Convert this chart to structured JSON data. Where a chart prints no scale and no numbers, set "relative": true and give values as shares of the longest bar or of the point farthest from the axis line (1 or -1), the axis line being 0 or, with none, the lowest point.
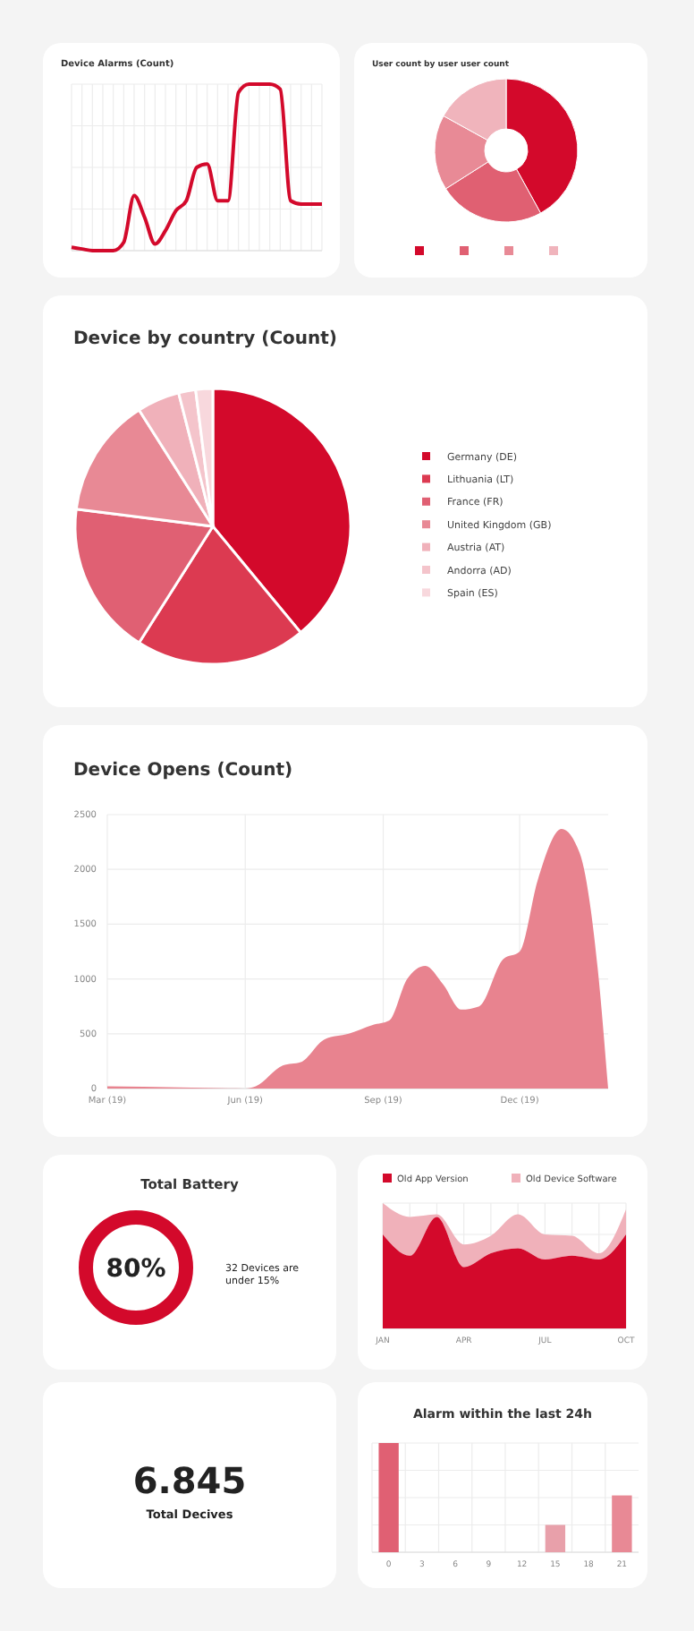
{
  "chart_data": [
    {
      "type": "line",
      "title": "Device Alarms (Count)",
      "relative": true,
      "grid": true,
      "categories": [
        null,
        null,
        null,
        null,
        null,
        null,
        null,
        null,
        null,
        null,
        null,
        null,
        null,
        null,
        null,
        null,
        null,
        null,
        null,
        null,
        null,
        null,
        null,
        null,
        null
      ],
      "series": [
        {
          "color": "#d3092b",
          "values": [
            0.02,
            0.01,
            0,
            0,
            0,
            0.05,
            0.33,
            0.2,
            0.04,
            0.12,
            0.24,
            0.3,
            0.5,
            0.52,
            0.3,
            0.3,
            0.95,
            1,
            1,
            1,
            0.97,
            0.3,
            0.28,
            0.28,
            0.28
          ]
        }
      ]
    },
    {
      "type": "donut",
      "title": "User count by user user count",
      "categories": [
        null,
        null,
        null,
        null
      ],
      "values": [
        42,
        24,
        17,
        17
      ],
      "colors": [
        "#d3092b",
        "#e06072",
        "#e88a96",
        "#f0b4bc"
      ]
    },
    {
      "type": "pie",
      "title": "Device by country (Count)",
      "categories": [
        "Germany (DE)",
        "Lithuania (LT)",
        "France (FR)",
        "United Kingdom (GB)",
        "Austria (AT)",
        "Andorra (AD)",
        "Spain (ES)"
      ],
      "values": [
        39,
        20,
        18,
        14,
        5,
        2,
        2
      ],
      "colors": [
        "#d3092b",
        "#dc3a51",
        "#e06073",
        "#e88995",
        "#f0b1ba",
        "#f4c4cb",
        "#f8d8dd"
      ],
      "legend": "right"
    },
    {
      "type": "area",
      "title": "Device Opens (Count)",
      "grid": true,
      "xlim": [
        "2019-03-01",
        "2020-01-29"
      ],
      "xticks": [
        {
          "value": "2019-03-01",
          "label": "Mar (19)"
        },
        {
          "value": "2019-06-01",
          "label": "Jun (19)"
        },
        {
          "value": "2019-09-01",
          "label": "Sep (19)"
        },
        {
          "value": "2019-12-01",
          "label": "Dec (19)"
        }
      ],
      "ylim": [
        0,
        2500
      ],
      "yticks": [
        0,
        500,
        1000,
        1500,
        2000,
        2500
      ],
      "x": [
        "2019-03-01",
        "2019-04-18",
        "2019-06-01",
        "2019-06-08",
        "2019-06-26",
        "2019-07-08",
        "2019-07-24",
        "2019-08-09",
        "2019-08-25",
        "2019-09-05",
        "2019-09-17",
        "2019-09-29",
        "2019-10-11",
        "2019-10-23",
        "2019-11-04",
        "2019-11-20",
        "2019-12-01",
        "2019-12-13",
        "2019-12-29",
        "2020-01-10",
        "2020-01-22",
        "2020-01-29"
      ],
      "series": [
        {
          "color": "#e8838f",
          "values": [
            20,
            10,
            0,
            20,
            210,
            240,
            450,
            500,
            580,
            620,
            1000,
            1120,
            950,
            720,
            750,
            1180,
            1250,
            1900,
            2370,
            2150,
            1100,
            0
          ]
        }
      ]
    },
    {
      "type": "other",
      "title": "Total Battery",
      "annotations": [
        "80%",
        "32 Devices are under 15%"
      ]
    },
    {
      "type": "area",
      "stacked": true,
      "relative": true,
      "grid": true,
      "legend": "top",
      "categories": [
        "JAN",
        null,
        null,
        "APR",
        null,
        null,
        "JUL",
        null,
        null,
        "OCT"
      ],
      "series": [
        {
          "name": "Old App Version",
          "color": "#d3092b",
          "values": [
            0.75,
            0.58,
            0.89,
            0.49,
            0.6,
            0.64,
            0.55,
            0.58,
            0.55,
            0.75
          ]
        },
        {
          "name": "Old Device Software",
          "color": "#f0b1ba",
          "values": [
            0.25,
            0.31,
            0.02,
            0.18,
            0.14,
            0.27,
            0.2,
            0.16,
            0.05,
            0.2
          ]
        }
      ]
    },
    {
      "type": "other",
      "annotations": [
        "6.845",
        "Total Decives"
      ]
    },
    {
      "type": "bar",
      "title": "Alarm within the last 24h",
      "relative": true,
      "grid": true,
      "categories": [
        "0",
        "3",
        "6",
        "9",
        "12",
        "15",
        "18",
        "21"
      ],
      "values": [
        1,
        0,
        0,
        0,
        0,
        0.25,
        0,
        0.52
      ],
      "colors": [
        "#e06073",
        "#e06073",
        "#e06073",
        "#e06073",
        "#e06073",
        "#e8a0aa",
        "#e06073",
        "#e88995"
      ]
    }
  ]
}
